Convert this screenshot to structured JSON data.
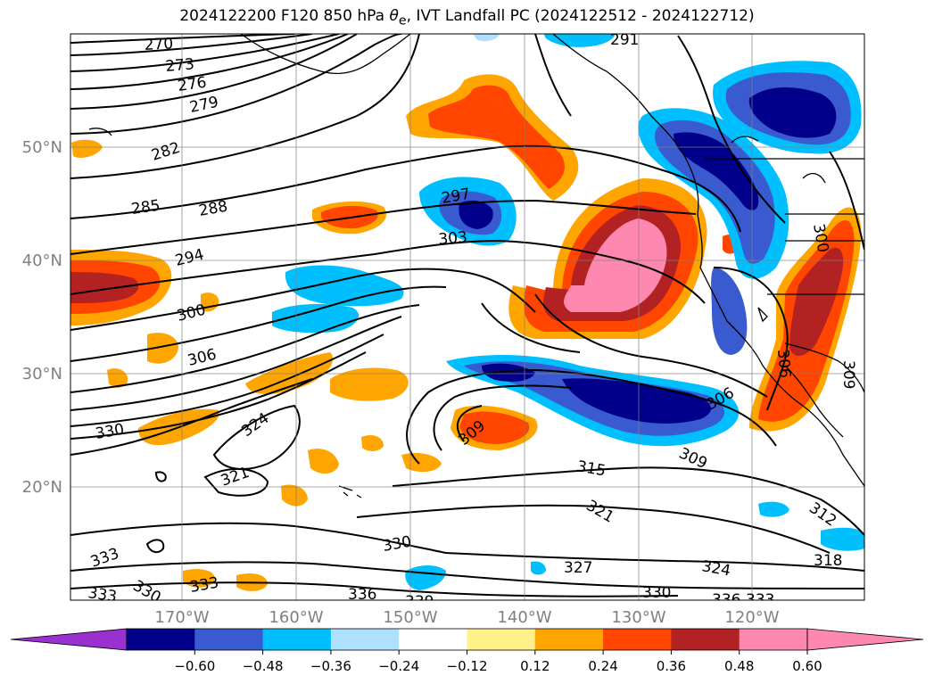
{
  "title": {
    "prefix": "2024122200 F120 850 hPa ",
    "symbol": "θ",
    "symbol_sub": "e",
    "suffix": ", IVT Landfall PC (2024122512 - 2024122712)"
  },
  "map": {
    "lat_labels": [
      "50°N",
      "40°N",
      "30°N",
      "20°N"
    ],
    "lon_labels": [
      "170°W",
      "160°W",
      "150°W",
      "140°W",
      "130°W",
      "120°W"
    ],
    "label_color": "#808080",
    "contour_labels": [
      "270",
      "273",
      "276",
      "279",
      "282",
      "285",
      "288",
      "294",
      "300",
      "306",
      "330",
      "324",
      "321",
      "297",
      "303",
      "291",
      "309",
      "315",
      "321",
      "327",
      "324",
      "318",
      "312",
      "309",
      "306",
      "300",
      "306",
      "309",
      "333",
      "333",
      "330",
      "333",
      "330",
      "336",
      "339",
      "330",
      "336",
      "333"
    ]
  },
  "colorbar": {
    "ticks": [
      "−0.60",
      "−0.48",
      "−0.36",
      "−0.24",
      "−0.12",
      "0.12",
      "0.24",
      "0.36",
      "0.48",
      "0.60"
    ],
    "colors": [
      "#9b30d0",
      "#00008b",
      "#3a5bd0",
      "#00bfff",
      "#b0e0ff",
      "#ffffff",
      "#fff08a",
      "#ffa500",
      "#ff4500",
      "#b22222",
      "#ff88b0",
      "#ff88b0"
    ],
    "under_color": "#9b30d0",
    "over_color": "#ff88b0"
  }
}
